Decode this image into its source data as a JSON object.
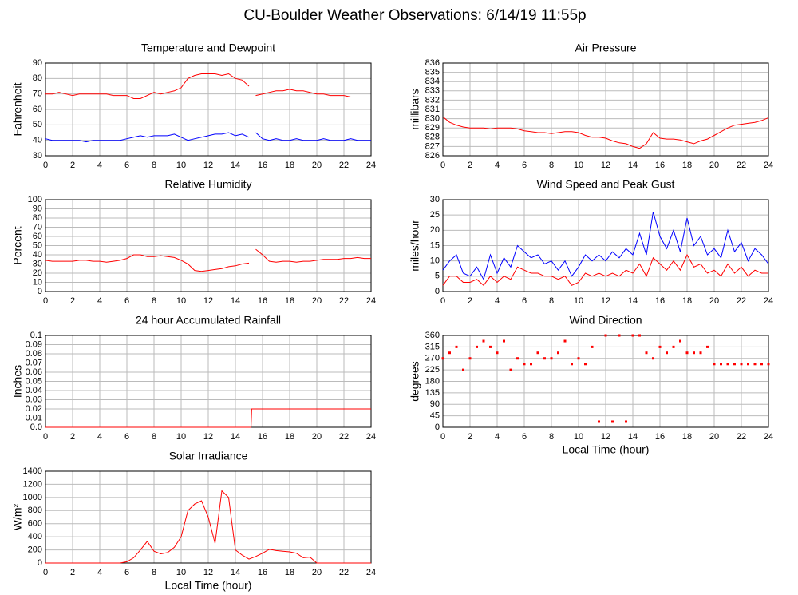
{
  "title": "CU-Boulder Weather Observations: 6/14/19 11:55p",
  "chart_data": [
    {
      "type": "line",
      "title": "Temperature and Dewpoint",
      "ylabel": "Fahrenheit",
      "grid": true,
      "x": [
        0,
        0.5,
        1,
        1.5,
        2,
        2.5,
        3,
        3.5,
        4,
        4.5,
        5,
        5.5,
        6,
        6.5,
        7,
        7.5,
        8,
        8.5,
        9,
        9.5,
        10,
        10.5,
        11,
        11.5,
        12,
        12.5,
        13,
        13.5,
        14,
        14.5,
        15,
        15.25,
        15.5,
        16,
        16.5,
        17,
        17.5,
        18,
        18.5,
        19,
        19.5,
        20,
        20.5,
        21,
        21.5,
        22,
        22.5,
        23,
        23.5,
        24
      ],
      "series": [
        {
          "name": "Temperature",
          "color": "#ff0000",
          "values": [
            70,
            70,
            71,
            70,
            69,
            70,
            70,
            70,
            70,
            70,
            69,
            69,
            69,
            67,
            67,
            69,
            71,
            70,
            71,
            72,
            74,
            80,
            82,
            83,
            83,
            83,
            82,
            83,
            80,
            79,
            75,
            null,
            69,
            70,
            71,
            72,
            72,
            73,
            72,
            72,
            71,
            70,
            70,
            69,
            69,
            69,
            68,
            68,
            68,
            68
          ]
        },
        {
          "name": "Dewpoint",
          "color": "#0000ff",
          "values": [
            41,
            40,
            40,
            40,
            40,
            40,
            39,
            40,
            40,
            40,
            40,
            40,
            41,
            42,
            43,
            42,
            43,
            43,
            43,
            44,
            42,
            40,
            41,
            42,
            43,
            44,
            44,
            45,
            43,
            44,
            42,
            null,
            45,
            41,
            40,
            41,
            40,
            40,
            41,
            40,
            40,
            40,
            41,
            40,
            40,
            40,
            41,
            40,
            40,
            40
          ]
        }
      ],
      "xlim": [
        0,
        24
      ],
      "xticks": [
        0,
        2,
        4,
        6,
        8,
        10,
        12,
        14,
        16,
        18,
        20,
        22,
        24
      ],
      "ylim": [
        30,
        90
      ],
      "yticks": [
        30,
        40,
        50,
        60,
        70,
        80,
        90
      ]
    },
    {
      "type": "line",
      "title": "Air Pressure",
      "ylabel": "millibars",
      "grid": true,
      "x": [
        0,
        0.5,
        1,
        1.5,
        2,
        2.5,
        3,
        3.5,
        4,
        4.5,
        5,
        5.5,
        6,
        6.5,
        7,
        7.5,
        8,
        8.5,
        9,
        9.5,
        10,
        10.5,
        11,
        11.5,
        12,
        12.5,
        13,
        13.5,
        14,
        14.5,
        15,
        15.5,
        16,
        16.5,
        17,
        17.5,
        18,
        18.5,
        19,
        19.5,
        20,
        20.5,
        21,
        21.5,
        22,
        22.5,
        23,
        23.5,
        24
      ],
      "series": [
        {
          "name": "Air Pressure",
          "color": "#ff0000",
          "values": [
            830.2,
            829.6,
            829.3,
            829.1,
            829.0,
            829.0,
            829.0,
            828.9,
            829.0,
            829.0,
            829.0,
            828.9,
            828.7,
            828.6,
            828.5,
            828.5,
            828.4,
            828.5,
            828.6,
            828.6,
            828.5,
            828.2,
            828.0,
            828.0,
            827.9,
            827.6,
            827.4,
            827.3,
            827.0,
            826.8,
            827.3,
            828.5,
            827.9,
            827.8,
            827.8,
            827.7,
            827.5,
            827.3,
            827.6,
            827.8,
            828.2,
            828.6,
            829.0,
            829.3,
            829.4,
            829.5,
            829.6,
            829.8,
            830.1
          ]
        }
      ],
      "xlim": [
        0,
        24
      ],
      "xticks": [
        0,
        2,
        4,
        6,
        8,
        10,
        12,
        14,
        16,
        18,
        20,
        22,
        24
      ],
      "ylim": [
        826,
        836
      ],
      "yticks": [
        826,
        827,
        828,
        829,
        830,
        831,
        832,
        833,
        834,
        835,
        836
      ]
    },
    {
      "type": "line",
      "title": "Relative Humidity",
      "ylabel": "Percent",
      "grid": true,
      "x": [
        0,
        0.5,
        1,
        1.5,
        2,
        2.5,
        3,
        3.5,
        4,
        4.5,
        5,
        5.5,
        6,
        6.5,
        7,
        7.5,
        8,
        8.5,
        9,
        9.5,
        10,
        10.5,
        11,
        11.5,
        12,
        12.5,
        13,
        13.5,
        14,
        14.5,
        15,
        15.25,
        15.5,
        16,
        16.5,
        17,
        17.5,
        18,
        18.5,
        19,
        19.5,
        20,
        20.5,
        21,
        21.5,
        22,
        22.5,
        23,
        23.5,
        24
      ],
      "series": [
        {
          "name": "Relative Humidity",
          "color": "#ff0000",
          "values": [
            34,
            33,
            33,
            33,
            33,
            34,
            34,
            33,
            33,
            32,
            33,
            34,
            36,
            40,
            40,
            38,
            38,
            39,
            38,
            37,
            34,
            30,
            23,
            22,
            23,
            24,
            25,
            27,
            28,
            30,
            31,
            null,
            46,
            40,
            33,
            32,
            33,
            33,
            32,
            33,
            33,
            34,
            35,
            35,
            35,
            36,
            36,
            37,
            36,
            36
          ]
        }
      ],
      "xlim": [
        0,
        24
      ],
      "xticks": [
        0,
        2,
        4,
        6,
        8,
        10,
        12,
        14,
        16,
        18,
        20,
        22,
        24
      ],
      "ylim": [
        0,
        100
      ],
      "yticks": [
        0,
        10,
        20,
        30,
        40,
        50,
        60,
        70,
        80,
        90,
        100
      ]
    },
    {
      "type": "line",
      "title": "Wind Speed and Peak Gust",
      "ylabel": "miles/hour",
      "grid": true,
      "x": [
        0,
        0.5,
        1,
        1.5,
        2,
        2.5,
        3,
        3.5,
        4,
        4.5,
        5,
        5.5,
        6,
        6.5,
        7,
        7.5,
        8,
        8.5,
        9,
        9.5,
        10,
        10.5,
        11,
        11.5,
        12,
        12.5,
        13,
        13.5,
        14,
        14.5,
        15,
        15.5,
        16,
        16.5,
        17,
        17.5,
        18,
        18.5,
        19,
        19.5,
        20,
        20.5,
        21,
        21.5,
        22,
        22.5,
        23,
        23.5,
        24
      ],
      "series": [
        {
          "name": "Peak Gust",
          "color": "#0000ff",
          "values": [
            7,
            10,
            12,
            6,
            5,
            8,
            4,
            12,
            6,
            11,
            8,
            15,
            13,
            11,
            12,
            9,
            10,
            7,
            10,
            5,
            8,
            12,
            10,
            12,
            10,
            13,
            11,
            14,
            12,
            19,
            12,
            26,
            18,
            14,
            20,
            13,
            24,
            15,
            18,
            12,
            14,
            11,
            20,
            13,
            16,
            10,
            14,
            12,
            9
          ]
        },
        {
          "name": "Wind Speed",
          "color": "#ff0000",
          "values": [
            2,
            5,
            5,
            3,
            3,
            4,
            2,
            5,
            3,
            5,
            4,
            8,
            7,
            6,
            6,
            5,
            5,
            4,
            5,
            2,
            3,
            6,
            5,
            6,
            5,
            6,
            5,
            7,
            6,
            9,
            5,
            11,
            9,
            7,
            10,
            7,
            12,
            8,
            9,
            6,
            7,
            5,
            9,
            6,
            8,
            5,
            7,
            6,
            6
          ]
        }
      ],
      "xlim": [
        0,
        24
      ],
      "xticks": [
        0,
        2,
        4,
        6,
        8,
        10,
        12,
        14,
        16,
        18,
        20,
        22,
        24
      ],
      "ylim": [
        0,
        30
      ],
      "yticks": [
        0,
        5,
        10,
        15,
        20,
        25,
        30
      ]
    },
    {
      "type": "line",
      "title": "24 hour Accumulated Rainfall",
      "ylabel": "Inches",
      "grid": true,
      "x": [
        0,
        15.15,
        15.2,
        24
      ],
      "series": [
        {
          "name": "Rainfall",
          "color": "#ff0000",
          "values": [
            0,
            0,
            0.02,
            0.02
          ]
        }
      ],
      "xlim": [
        0,
        24
      ],
      "xticks": [
        0,
        2,
        4,
        6,
        8,
        10,
        12,
        14,
        16,
        18,
        20,
        22,
        24
      ],
      "ylim": [
        0,
        0.1
      ],
      "yticks": [
        {
          "value": 0,
          "label": "0.0"
        },
        0.01,
        0.02,
        0.03,
        0.04,
        0.05,
        0.06,
        0.07,
        0.08,
        0.09,
        0.1
      ]
    },
    {
      "type": "scatter",
      "title": "Wind Direction",
      "ylabel": "degrees",
      "xlabel": "Local Time (hour)",
      "grid": true,
      "x": [
        0,
        0.5,
        1,
        1.5,
        2,
        2.5,
        3,
        3.5,
        4,
        4.5,
        5,
        5.5,
        6,
        6.5,
        7,
        7.5,
        8,
        8.5,
        9,
        9.5,
        10,
        10.5,
        11,
        11.5,
        12,
        12.5,
        13,
        13.5,
        14,
        14.5,
        15,
        15.5,
        16,
        16.5,
        17,
        17.5,
        18,
        18.5,
        19,
        19.5,
        20,
        20.5,
        21,
        21.5,
        22,
        22.5,
        23,
        23.5,
        24
      ],
      "color": "#ff0000",
      "values": [
        270,
        292,
        315,
        225,
        270,
        315,
        338,
        315,
        292,
        338,
        225,
        270,
        248,
        248,
        292,
        270,
        270,
        292,
        338,
        248,
        270,
        248,
        315,
        22,
        360,
        22,
        360,
        22,
        360,
        360,
        292,
        270,
        315,
        292,
        315,
        338,
        292,
        292,
        292,
        315,
        248,
        248,
        248,
        248,
        248,
        248,
        248,
        248,
        248
      ],
      "xlim": [
        0,
        24
      ],
      "xticks": [
        0,
        2,
        4,
        6,
        8,
        10,
        12,
        14,
        16,
        18,
        20,
        22,
        24
      ],
      "ylim": [
        0,
        360
      ],
      "yticks": [
        0,
        45,
        90,
        135,
        180,
        225,
        270,
        315,
        360
      ]
    },
    {
      "type": "line",
      "title": "Solar Irradiance",
      "ylabel": "W/m²",
      "xlabel": "Local Time (hour)",
      "grid": true,
      "x": [
        0,
        0.5,
        1,
        1.5,
        2,
        2.5,
        3,
        3.5,
        4,
        4.5,
        5,
        5.5,
        6,
        6.5,
        7,
        7.5,
        8,
        8.5,
        9,
        9.5,
        10,
        10.5,
        11,
        11.5,
        12,
        12.5,
        13,
        13.5,
        14,
        14.5,
        15,
        15.5,
        16,
        16.5,
        17,
        17.5,
        18,
        18.5,
        19,
        19.5,
        20,
        20.5,
        21,
        21.5,
        22,
        22.5,
        23,
        23.5,
        24
      ],
      "series": [
        {
          "name": "Solar Irradiance",
          "color": "#ff0000",
          "values": [
            0,
            0,
            0,
            0,
            0,
            0,
            0,
            0,
            0,
            0,
            0,
            0,
            20,
            80,
            200,
            330,
            180,
            140,
            160,
            240,
            400,
            800,
            900,
            950,
            700,
            300,
            1100,
            1000,
            200,
            120,
            60,
            100,
            150,
            210,
            190,
            180,
            170,
            150,
            80,
            90,
            0,
            0,
            0,
            0,
            0,
            0,
            0,
            0,
            0
          ]
        }
      ],
      "xlim": [
        0,
        24
      ],
      "xticks": [
        0,
        2,
        4,
        6,
        8,
        10,
        12,
        14,
        16,
        18,
        20,
        22,
        24
      ],
      "ylim": [
        0,
        1400
      ],
      "yticks": [
        0,
        200,
        400,
        600,
        800,
        1000,
        1200,
        1400
      ]
    }
  ]
}
